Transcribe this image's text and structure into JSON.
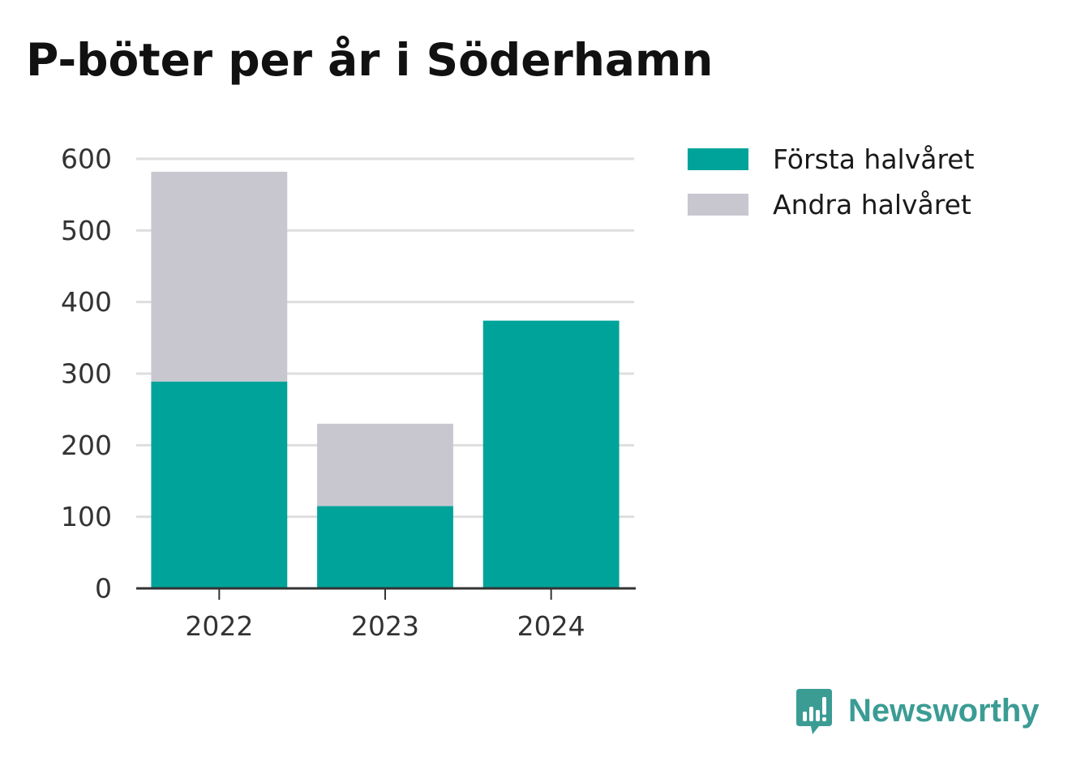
{
  "title": "P-böter per år i Söderhamn",
  "legend": [
    {
      "label": "Första halvåret",
      "color": "#00a39a"
    },
    {
      "label": "Andra halvåret",
      "color": "#c8c7d0"
    }
  ],
  "brand": {
    "name": "Newsworthy",
    "color": "#3b9c94",
    "icon": "bar-chart-speech-bubble-icon"
  },
  "chart_data": {
    "type": "bar",
    "stacked": true,
    "title": "P-böter per år i Söderhamn",
    "xlabel": "",
    "ylabel": "",
    "categories": [
      "2022",
      "2023",
      "2024"
    ],
    "series": [
      {
        "name": "Första halvåret",
        "color": "#00a39a",
        "values": [
          289,
          115,
          374
        ]
      },
      {
        "name": "Andra halvåret",
        "color": "#c8c7d0",
        "values": [
          293,
          115,
          0
        ]
      }
    ],
    "ylim": [
      0,
      600
    ],
    "yticks": [
      0,
      100,
      200,
      300,
      400,
      500,
      600
    ],
    "grid": true,
    "legend_position": "top-right"
  }
}
